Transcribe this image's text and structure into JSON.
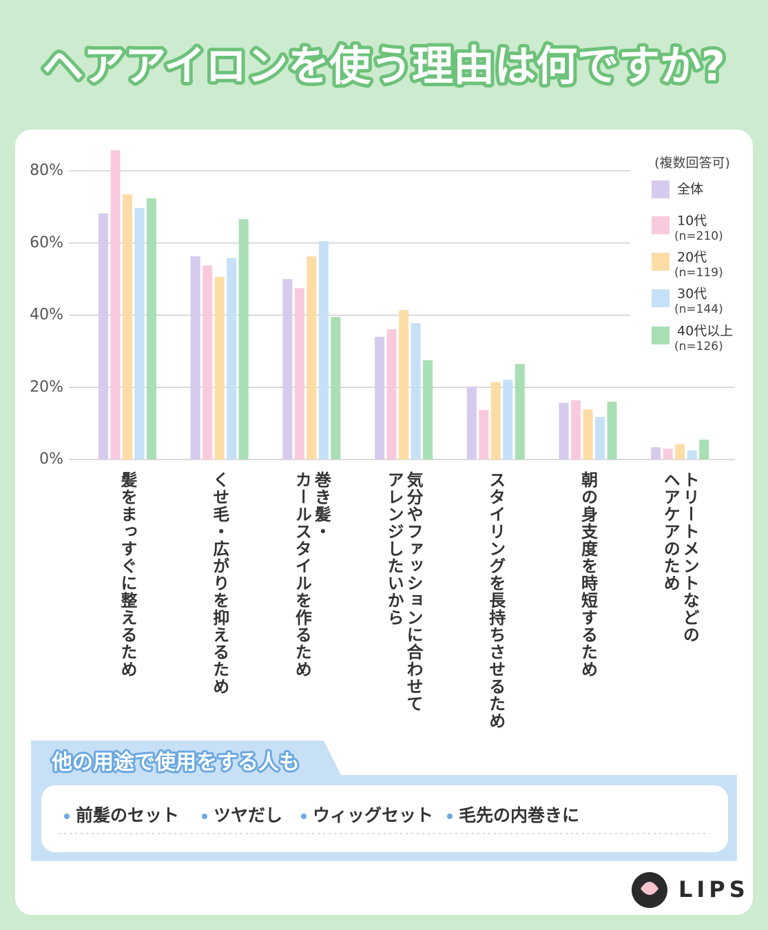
{
  "chart_data": {
    "type": "bar",
    "title": "ヘアアイロンを使う理由は何ですか?",
    "legend_title": "(複数回答可)",
    "categories": [
      "髪をまっすぐに整えるため",
      "くせ毛・広がりを抑えるため",
      "巻き髪・\nカールスタイルを作るため",
      "気分やファッションに合わせて\nアレンジしたいから",
      "スタイリングを長持ちさせるため",
      "朝の身支度を時短するため",
      "トリートメントなどの\nヘアケアのため"
    ],
    "series": [
      {
        "name": "全体",
        "color": "#d6caee",
        "values": [
          68.2,
          56.3,
          50,
          34,
          20.2,
          15.7,
          3.4
        ]
      },
      {
        "name": "10代",
        "sample": "(n=210)",
        "color": "#f9cade",
        "values": [
          85.7,
          53.8,
          47.5,
          36.1,
          13.7,
          16.4,
          3
        ]
      },
      {
        "name": "20代",
        "sample": "(n=119)",
        "color": "#fddca6",
        "values": [
          73.5,
          50.6,
          56.3,
          41.4,
          21.4,
          13.9,
          4.2
        ]
      },
      {
        "name": "30代",
        "sample": "(n=144)",
        "color": "#c6e0f7",
        "values": [
          69.7,
          55.8,
          60.5,
          37.8,
          22.1,
          11.8,
          2.5
        ]
      },
      {
        "name": "40代以上",
        "sample": "(n=126)",
        "color": "#a9dfb4",
        "values": [
          72.4,
          66.6,
          39.5,
          27.5,
          26.5,
          16,
          5.5
        ]
      }
    ],
    "ylim": [
      0,
      85.7
    ],
    "yticks": [
      {
        "value": 0,
        "label": "0%"
      },
      {
        "value": 20,
        "label": "20%"
      },
      {
        "value": 40,
        "label": "40%"
      },
      {
        "value": 60,
        "label": "60%"
      },
      {
        "value": 80,
        "label": "80%"
      }
    ],
    "grid": true
  },
  "callout": {
    "title": "他の用途で使用をする人も",
    "items": [
      "前髪のセット",
      "ツヤだし",
      "ウィッグセット",
      "毛先の内巻きに"
    ]
  },
  "brand": "LIPS"
}
